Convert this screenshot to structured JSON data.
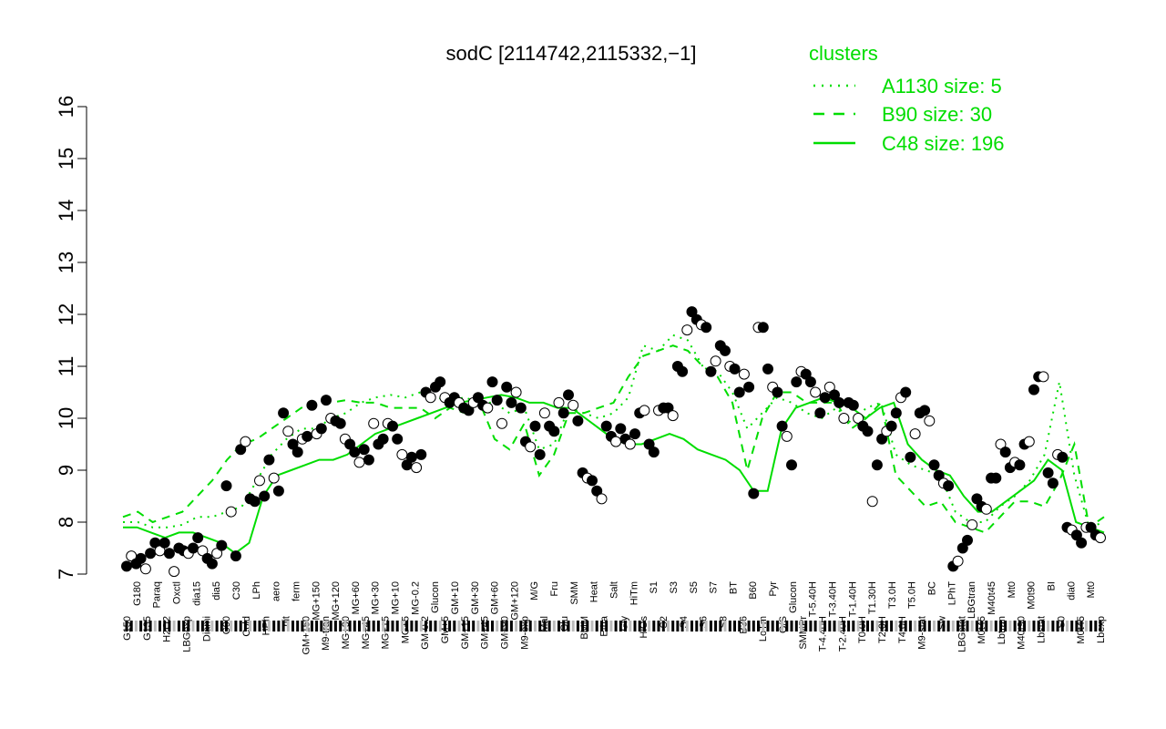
{
  "chart_data": {
    "type": "line",
    "title": "sodC [2114742,2115332,−1]",
    "xlabel": "",
    "ylabel": "",
    "ylim": [
      7,
      16
    ],
    "yticks": [
      7,
      8,
      9,
      10,
      11,
      12,
      13,
      14,
      15,
      16
    ],
    "grid": false,
    "legend": {
      "title": "clusters",
      "placement": "top-right",
      "entries": [
        {
          "label": "A1130 size: 5",
          "style": "dotted"
        },
        {
          "label": "B90 size: 30",
          "style": "dashed"
        },
        {
          "label": "C48 size: 196",
          "style": "solid"
        }
      ]
    },
    "colors": {
      "line": "#00dd00",
      "legend_text": "#00dd00",
      "point_filled": "#000000",
      "point_open": "#ffffff"
    },
    "x_tick_labels": [
      "G150",
      "G180",
      "G135",
      "Paraq",
      "H2O2",
      "Oxctl",
      "LBGexp",
      "dia15",
      "Diami",
      "dia5",
      "C90",
      "C30",
      "Cold",
      "LPh",
      "HPh",
      "aero",
      "nit",
      "ferm",
      "GM+150",
      "MG+150",
      "M9-tran",
      "MG+120",
      "MG+90",
      "MG+60",
      "MG+45",
      "MG+30",
      "MG+15",
      "MG+10",
      "MG+5",
      "MG-0.2",
      "GM-0.2",
      "Glucon",
      "GM+5",
      "GM+10",
      "GM+15",
      "GM+30",
      "GM+45",
      "GM+60",
      "GM+90",
      "GM+120",
      "M9-exp",
      "M/G",
      "Mal",
      "Fru",
      "Glu",
      "SMM",
      "BMM",
      "Heat",
      "Etha",
      "Salt",
      "Gly",
      "HiTm",
      "HiOs",
      "S1",
      "S2",
      "S3",
      "S4",
      "S5",
      "S6",
      "S7",
      "S8",
      "BT",
      "B36",
      "B60",
      "LoTm",
      "Pyr",
      "G/S",
      "Glucon",
      "SMMPr",
      "T-5.40H",
      "T-4.40H",
      "T-3.40H",
      "T-2.40H",
      "T-1.40H",
      "T0.0H",
      "T1.30H",
      "T2.0H",
      "T3.0H",
      "T4.0H",
      "T5.0H",
      "M9-stat",
      "BC",
      "Sw",
      "LPhT",
      "LBGstat",
      "LBGtran",
      "M0t45",
      "M40t45",
      "Lbtran",
      "Mt0",
      "M40t90",
      "M0t90",
      "Lbstat",
      "BI",
      "S0",
      "dia0",
      "M0t45",
      "Mt0",
      "Lbexp"
    ],
    "points": [
      7.15,
      7.35,
      7.2,
      7.3,
      7.1,
      7.4,
      7.6,
      7.45,
      7.6,
      7.4,
      7.05,
      7.5,
      7.45,
      7.4,
      7.5,
      7.7,
      7.45,
      7.3,
      7.2,
      7.4,
      7.55,
      8.7,
      8.2,
      7.35,
      9.4,
      9.55,
      8.45,
      8.4,
      8.8,
      8.5,
      9.2,
      8.85,
      8.6,
      10.1,
      9.75,
      9.5,
      9.35,
      9.6,
      9.65,
      10.25,
      9.7,
      9.8,
      10.35,
      10.0,
      9.95,
      9.9,
      9.6,
      9.5,
      9.35,
      9.15,
      9.4,
      9.2,
      9.9,
      9.5,
      9.6,
      9.9,
      9.85,
      9.6,
      9.3,
      9.1,
      9.25,
      9.05,
      9.3,
      10.5,
      10.4,
      10.6,
      10.7,
      10.4,
      10.3,
      10.4,
      10.3,
      10.2,
      10.15,
      10.3,
      10.4,
      10.25,
      10.2,
      10.7,
      10.35,
      9.9,
      10.6,
      10.3,
      10.5,
      10.2,
      9.55,
      9.45,
      9.85,
      9.3,
      10.1,
      9.85,
      9.75,
      10.3,
      10.1,
      10.45,
      10.25,
      9.95,
      8.95,
      8.85,
      8.8,
      8.6,
      8.45,
      9.85,
      9.65,
      9.55,
      9.8,
      9.6,
      9.5,
      9.7,
      10.1,
      10.15,
      9.5,
      9.35,
      10.15,
      10.2,
      10.2,
      10.05,
      11.0,
      10.9,
      11.7,
      12.05,
      11.9,
      11.8,
      11.75,
      10.9,
      11.1,
      11.4,
      11.3,
      11.0,
      10.95,
      10.5,
      10.85,
      10.6,
      8.55,
      11.75,
      11.75,
      10.95,
      10.6,
      10.5,
      9.85,
      9.65,
      9.1,
      10.7,
      10.9,
      10.85,
      10.7,
      10.5,
      10.1,
      10.4,
      10.6,
      10.45,
      10.3,
      10.0,
      10.3,
      10.25,
      10.0,
      9.85,
      9.75,
      8.4,
      9.1,
      9.6,
      9.75,
      9.85,
      10.1,
      10.4,
      10.5,
      9.25,
      9.7,
      10.1,
      10.15,
      9.95,
      9.1,
      8.9,
      8.75,
      8.7,
      7.15,
      7.25,
      7.5,
      7.65,
      7.95,
      8.45,
      8.3,
      8.25,
      8.85,
      8.85,
      9.5,
      9.35,
      9.05,
      9.15,
      9.1,
      9.5,
      9.55,
      10.55,
      10.8,
      10.8,
      8.95,
      8.75,
      9.3,
      9.25,
      7.9,
      7.85,
      7.75,
      7.6,
      7.9,
      7.9,
      7.75,
      7.7
    ],
    "series": [
      {
        "name": "A1130 size: 5",
        "style": "dotted",
        "values": [
          8.0,
          8.0,
          7.9,
          7.9,
          7.95,
          8.1,
          8.1,
          8.2,
          8.3,
          8.8,
          9.3,
          9.6,
          9.8,
          9.8,
          10.0,
          10.1,
          10.3,
          10.4,
          10.45,
          10.4,
          10.5,
          10.4,
          10.35,
          10.4,
          10.3,
          10.3,
          10.1,
          10.2,
          9.4,
          9.5,
          10.2,
          10.1,
          10.0,
          10.1,
          10.4,
          11.4,
          11.3,
          11.6,
          11.5,
          11.0,
          10.9,
          10.5,
          9.8,
          10.1,
          10.4,
          10.3,
          10.1,
          10.0,
          10.2,
          9.9,
          10.2,
          10.3,
          9.3,
          9.1,
          9.0,
          8.9,
          8.2,
          8.0,
          8.0,
          8.3,
          8.5,
          8.8,
          9.3,
          10.7,
          8.9,
          7.9,
          8.0
        ]
      },
      {
        "name": "B90 size: 30",
        "style": "dashed",
        "values": [
          8.1,
          8.2,
          8.0,
          8.1,
          8.2,
          8.5,
          8.8,
          9.2,
          9.5,
          9.6,
          9.8,
          10.0,
          10.2,
          10.3,
          10.3,
          10.35,
          10.3,
          10.3,
          10.2,
          10.2,
          10.2,
          10.0,
          10.2,
          10.1,
          10.3,
          9.6,
          9.4,
          9.9,
          8.9,
          9.3,
          10.1,
          10.1,
          10.2,
          10.3,
          10.8,
          11.2,
          11.3,
          11.4,
          11.3,
          11.0,
          10.8,
          10.3,
          9.0,
          10.0,
          10.5,
          10.5,
          10.3,
          10.3,
          10.3,
          9.8,
          10.0,
          10.3,
          8.9,
          8.6,
          8.3,
          8.4,
          8.0,
          7.9,
          7.8,
          8.1,
          8.4,
          8.4,
          8.3,
          8.8,
          9.5,
          7.9,
          8.1
        ]
      },
      {
        "name": "C48 size: 196",
        "style": "solid",
        "values": [
          7.9,
          7.9,
          7.8,
          7.7,
          7.8,
          7.8,
          7.7,
          7.6,
          7.4,
          7.6,
          8.5,
          8.9,
          9.0,
          9.1,
          9.2,
          9.2,
          9.3,
          9.5,
          9.7,
          9.8,
          9.9,
          10.0,
          10.1,
          10.2,
          10.3,
          10.35,
          10.4,
          10.45,
          10.4,
          10.3,
          10.3,
          10.2,
          10.2,
          10.0,
          9.8,
          9.6,
          9.5,
          9.5,
          9.6,
          9.7,
          9.6,
          9.4,
          9.3,
          9.2,
          9.0,
          8.6,
          8.6,
          9.8,
          10.2,
          10.3,
          10.4,
          10.3,
          10.2,
          10.0,
          10.2,
          10.3,
          9.5,
          9.2,
          9.0,
          8.9,
          8.5,
          8.2,
          8.2,
          8.4,
          8.6,
          8.8,
          9.2,
          9.0,
          8.0,
          7.9,
          7.8
        ]
      }
    ]
  }
}
